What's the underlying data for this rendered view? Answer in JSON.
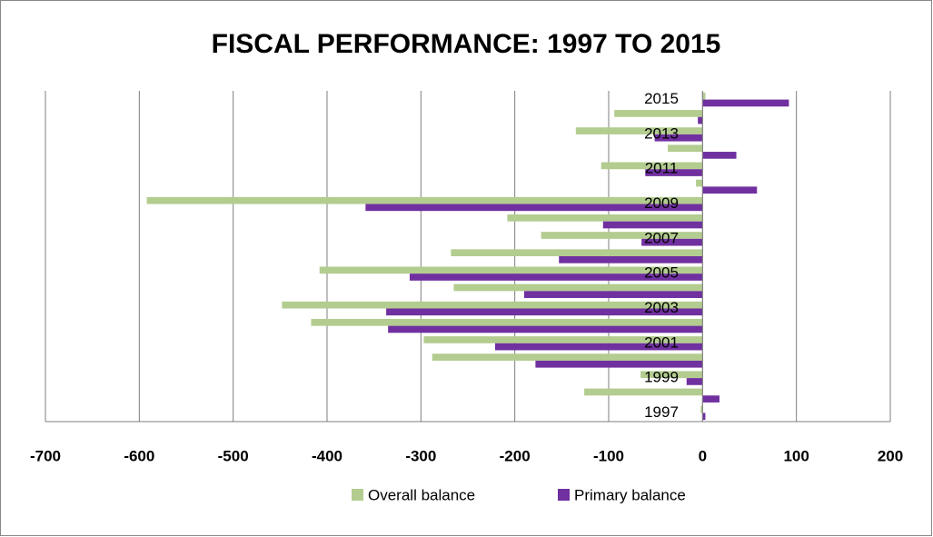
{
  "chart_data": {
    "type": "barh",
    "title": "FISCAL  PERFORMANCE: 1997 TO 2015",
    "categories": [
      "1997",
      null,
      "1999",
      null,
      "2001",
      null,
      "2003",
      null,
      "2005",
      null,
      "2007",
      null,
      "2009",
      null,
      "2011",
      null,
      "2013",
      null,
      "2015"
    ],
    "series": [
      {
        "name": "Overall balance",
        "color": "#b3cc8f",
        "values": [
          -2,
          -126,
          -66,
          -288,
          -297,
          -417,
          -448,
          -265,
          -408,
          -268,
          -172,
          -208,
          -592,
          -7,
          -108,
          -37,
          -135,
          -94,
          3
        ]
      },
      {
        "name": "Primary balance",
        "color": "#7030a0",
        "values": [
          3,
          18,
          -17,
          -178,
          -221,
          -335,
          -337,
          -190,
          -312,
          -153,
          -65,
          -106,
          -359,
          58,
          -61,
          36,
          -51,
          -5,
          92
        ]
      }
    ],
    "xlim": [
      -700,
      200
    ],
    "xticks": [
      -700,
      -600,
      -500,
      -400,
      -300,
      -200,
      -100,
      0,
      100,
      200
    ],
    "grid": true,
    "legend": "bottom"
  }
}
